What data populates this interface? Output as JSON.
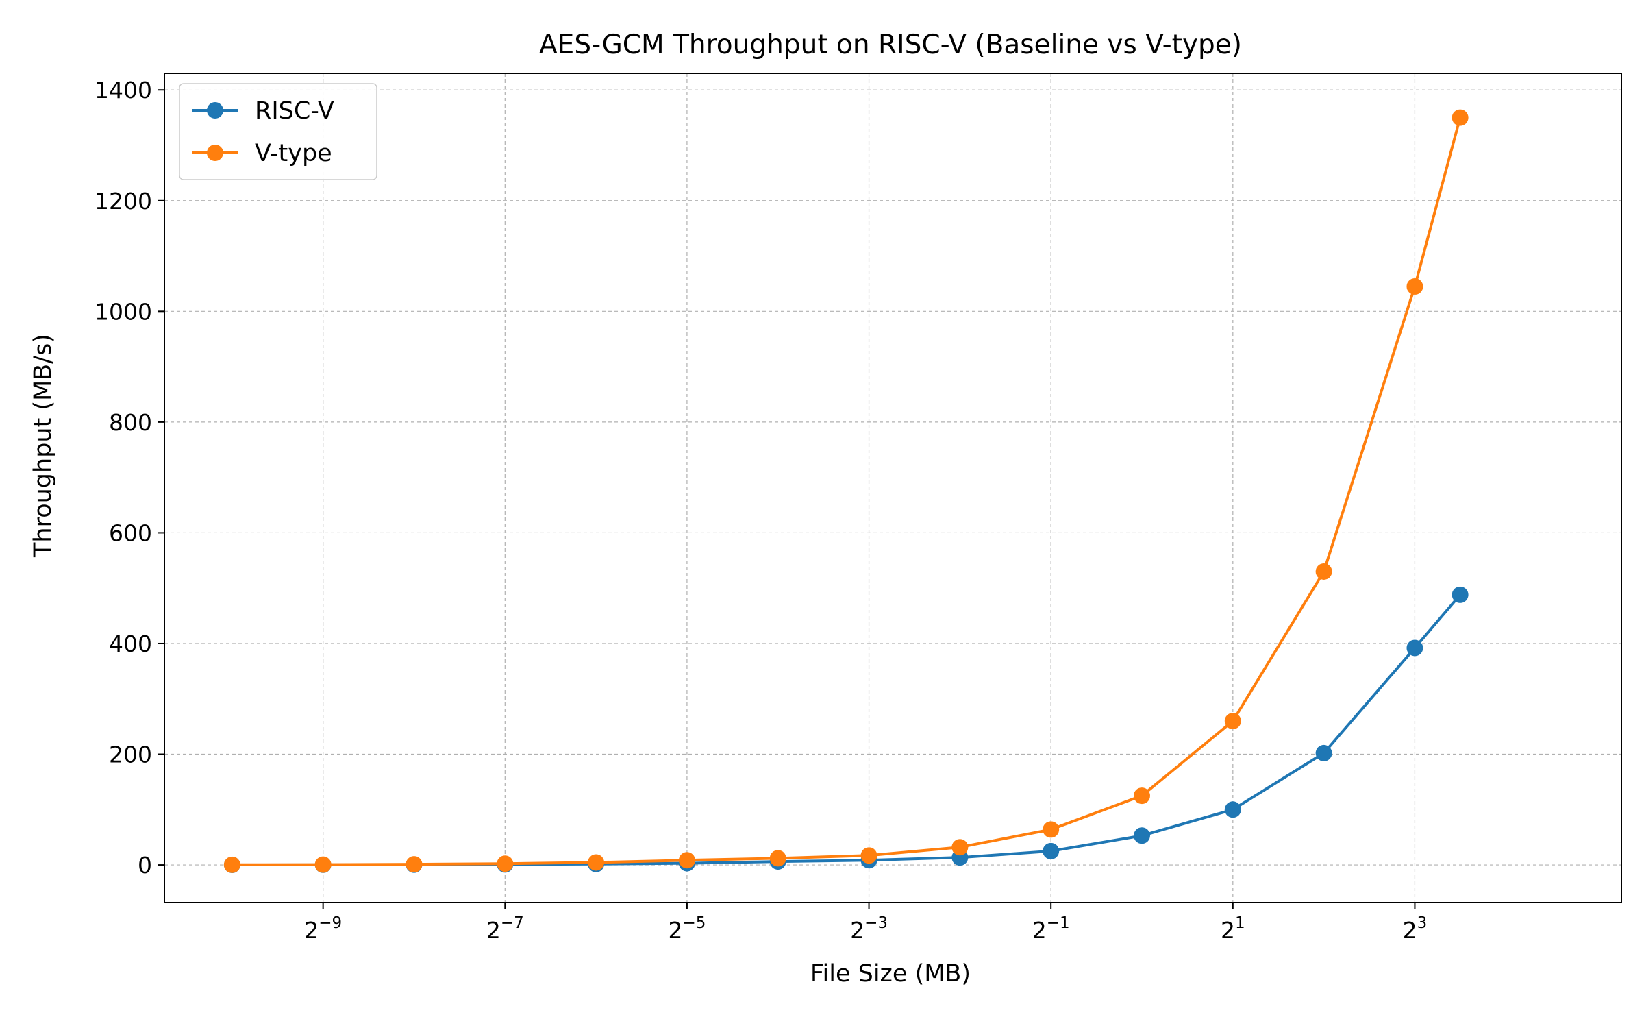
{
  "chart_data": {
    "type": "line",
    "title": "AES-GCM Throughput on RISC-V (Baseline vs V-type)",
    "xlabel": "File Size (MB)",
    "ylabel": "Throughput (MB/s)",
    "x_scale": "log2",
    "x_ticks": [
      {
        "base": "2",
        "exp": "−9",
        "value": 0.001953125
      },
      {
        "base": "2",
        "exp": "−7",
        "value": 0.0078125
      },
      {
        "base": "2",
        "exp": "−5",
        "value": 0.03125
      },
      {
        "base": "2",
        "exp": "−3",
        "value": 0.125
      },
      {
        "base": "2",
        "exp": "−1",
        "value": 0.5
      },
      {
        "base": "2",
        "exp": "1",
        "value": 2
      },
      {
        "base": "2",
        "exp": "3",
        "value": 8
      }
    ],
    "y_ticks": [
      "0",
      "200",
      "400",
      "600",
      "800",
      "1000",
      "1200",
      "1400"
    ],
    "xlim": [
      0.000583,
      38.6
    ],
    "ylim": [
      -68,
      1430
    ],
    "grid": true,
    "legend_position": "top-left",
    "x": [
      0.0009765625,
      0.001953125,
      0.00390625,
      0.0078125,
      0.015625,
      0.03125,
      0.0625,
      0.125,
      0.25,
      0.5,
      1,
      2,
      4,
      8,
      11.3
    ],
    "series": [
      {
        "name": "RISC-V",
        "color": "#1f77b4",
        "values": [
          0.1,
          0.2,
          0.4,
          0.8,
          1.6,
          3.1,
          6.2,
          8.5,
          13.5,
          25,
          53,
          100,
          202,
          392,
          488
        ]
      },
      {
        "name": "V-type",
        "color": "#ff7f0e",
        "values": [
          0.3,
          0.6,
          1.2,
          2.3,
          4.5,
          8.5,
          12,
          17,
          32,
          64,
          125,
          260,
          530,
          1045,
          1350
        ]
      }
    ]
  }
}
